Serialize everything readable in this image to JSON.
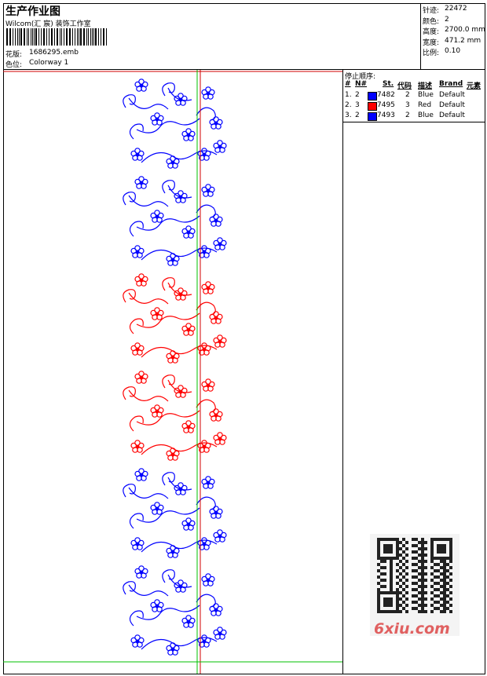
{
  "header": {
    "title": "生产作业图",
    "studio": "Wilcom(汇 宸) 装饰工作室",
    "design": {
      "label": "花版:",
      "value": "1686295.emb"
    },
    "colorway": {
      "label": "色位:",
      "value": "Colorway 1"
    }
  },
  "info": [
    {
      "label": "针迹:",
      "value": "22472"
    },
    {
      "label": "颜色:",
      "value": "2"
    },
    {
      "label": "高度:",
      "value": "2700.0 mm"
    },
    {
      "label": "宽度:",
      "value": "471.2 mm"
    },
    {
      "label": "比例:",
      "value": "0.10"
    }
  ],
  "stop_sequence": {
    "title": "停止顺序:",
    "columns": [
      "#",
      "N#",
      "St.",
      "代码",
      "描述",
      "Brand",
      "元素"
    ],
    "rows": [
      {
        "index": "1.",
        "needle": "2",
        "color": "#0000ff",
        "code": "7482",
        "stops": "2",
        "description": "Blue",
        "brand": "Default"
      },
      {
        "index": "2.",
        "needle": "3",
        "color": "#ff0000",
        "code": "7495",
        "stops": "3",
        "description": "Red",
        "brand": "Default"
      },
      {
        "index": "3.",
        "needle": "2",
        "color": "#0000ff",
        "code": "7493",
        "stops": "2",
        "description": "Blue",
        "brand": "Default"
      }
    ]
  },
  "watermark": "6xiu.com"
}
